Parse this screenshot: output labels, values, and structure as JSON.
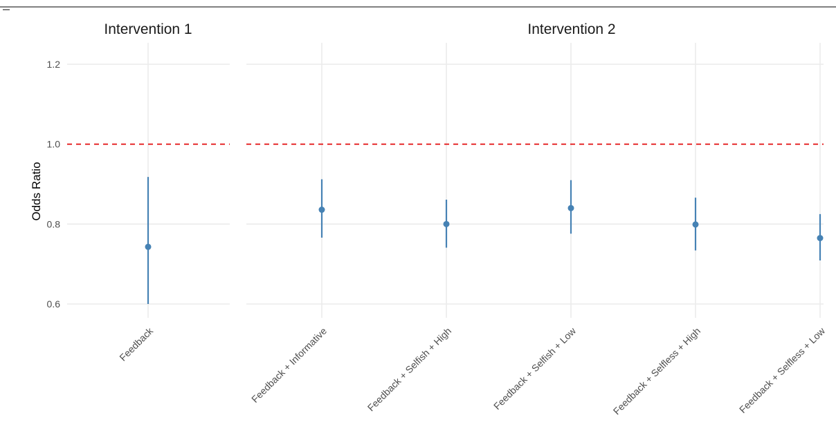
{
  "chart_data": {
    "type": "scatter",
    "ylabel": "Odds Ratio",
    "ylim": [
      0.55,
      1.25
    ],
    "yticks": [
      0.6,
      0.8,
      1.0,
      1.2
    ],
    "ytick_labels": [
      "0.6",
      "0.8",
      "1.0",
      "1.2"
    ],
    "reference_line": {
      "y": 1.0,
      "style": "dashed",
      "color": "#e41a1c"
    },
    "point_color": "#4682b4",
    "grid": true,
    "panels": [
      {
        "title": "Intervention 1",
        "categories": [
          "Feedback"
        ],
        "estimates": [
          0.743
        ],
        "ci_low": [
          0.6
        ],
        "ci_high": [
          0.918
        ]
      },
      {
        "title": "Intervention 2",
        "categories": [
          "Feedback + Informative",
          "Feedback + Selfish + High",
          "Feedback + Selfish + Low",
          "Feedback + Selfless + High",
          "Feedback + Selfless + Low"
        ],
        "estimates": [
          0.836,
          0.8,
          0.84,
          0.799,
          0.765
        ],
        "ci_low": [
          0.766,
          0.741,
          0.776,
          0.734,
          0.709
        ],
        "ci_high": [
          0.912,
          0.861,
          0.91,
          0.866,
          0.825
        ]
      }
    ]
  }
}
